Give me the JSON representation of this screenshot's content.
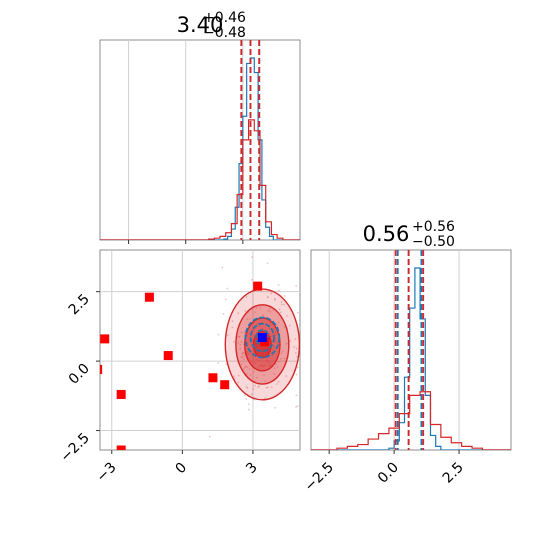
{
  "chart_data": {
    "type": "corner",
    "panels": [
      {
        "id": "hist-x",
        "kind": "histogram",
        "title": {
          "main": "3.40",
          "sup": "+0.46",
          "sub": "−0.48"
        },
        "xlim": [
          -4.5,
          6.0
        ],
        "grid": true,
        "quantile_lines": [
          {
            "series": "blue",
            "style": "dashed",
            "x": [
              2.92,
              3.4,
              3.86
            ]
          },
          {
            "series": "red",
            "style": "dashed",
            "x": [
              2.92,
              3.4,
              3.86
            ]
          }
        ],
        "series": [
          {
            "name": "blue",
            "color": "#1f77b4",
            "edges": [
              2.0,
              2.2,
              2.4,
              2.6,
              2.8,
              3.0,
              3.2,
              3.4,
              3.6,
              3.8,
              4.0,
              4.2,
              4.4,
              4.6
            ],
            "counts": [
              0.005,
              0.02,
              0.06,
              0.18,
              0.42,
              0.68,
              0.97,
              1.0,
              0.92,
              0.55,
              0.22,
              0.07,
              0.02
            ]
          },
          {
            "name": "red",
            "color": "#d62728",
            "edges": [
              1.2,
              1.5,
              1.8,
              2.1,
              2.4,
              2.7,
              3.0,
              3.3,
              3.6,
              3.9,
              4.2,
              4.5,
              4.8,
              5.1
            ],
            "counts": [
              0.005,
              0.01,
              0.02,
              0.04,
              0.09,
              0.25,
              0.55,
              0.66,
              0.6,
              0.3,
              0.1,
              0.03,
              0.01
            ]
          }
        ]
      },
      {
        "id": "hist-y",
        "kind": "histogram",
        "title": {
          "main": "0.56",
          "sup": "+0.56",
          "sub": "−0.50"
        },
        "xlim": [
          -3.2,
          4.5
        ],
        "xticks": [
          -2.5,
          0.0,
          2.5
        ],
        "xtick_labels": [
          "−2.5",
          "0.0",
          "2.5"
        ],
        "grid": true,
        "quantile_lines": [
          {
            "series": "blue",
            "style": "dashed",
            "x": [
              0.14,
              0.56,
              1.05
            ]
          },
          {
            "series": "red",
            "style": "dashed",
            "x": [
              0.06,
              0.56,
              1.12
            ]
          }
        ],
        "series": [
          {
            "name": "blue",
            "color": "#1f77b4",
            "edges": [
              -0.2,
              0.0,
              0.2,
              0.4,
              0.6,
              0.8,
              1.0,
              1.2,
              1.4,
              1.6,
              1.8
            ],
            "counts": [
              0.01,
              0.05,
              0.15,
              0.4,
              0.78,
              1.0,
              0.72,
              0.3,
              0.08,
              0.02
            ]
          },
          {
            "name": "red",
            "color": "#d62728",
            "edges": [
              -2.2,
              -1.8,
              -1.4,
              -1.0,
              -0.6,
              -0.2,
              0.2,
              0.6,
              1.0,
              1.4,
              1.8,
              2.2,
              2.6,
              3.0,
              3.4
            ],
            "counts": [
              0.01,
              0.02,
              0.03,
              0.06,
              0.09,
              0.12,
              0.2,
              0.3,
              0.32,
              0.14,
              0.07,
              0.04,
              0.02,
              0.01
            ]
          }
        ]
      },
      {
        "id": "scatter-xy",
        "kind": "scatter_contour",
        "xlim": [
          -3.5,
          5.0
        ],
        "ylim": [
          -3.2,
          4.0
        ],
        "xticks": [
          -3,
          0,
          3
        ],
        "xtick_labels": [
          "−3",
          "0",
          "3"
        ],
        "yticks": [
          -2.5,
          0.0,
          2.5
        ],
        "ytick_labels": [
          "−2.5",
          "0.0",
          "2.5"
        ],
        "grid": true,
        "points": [
          {
            "x": -3.3,
            "y": 0.8
          },
          {
            "x": -2.6,
            "y": -1.2
          },
          {
            "x": -2.6,
            "y": -3.2
          },
          {
            "x": -1.4,
            "y": 2.3
          },
          {
            "x": -0.6,
            "y": 0.2
          },
          {
            "x": 1.3,
            "y": -0.6
          },
          {
            "x": 1.8,
            "y": -0.85
          },
          {
            "x": 3.2,
            "y": 2.7
          },
          {
            "x": -3.6,
            "y": -0.3
          },
          {
            "x": 3.5,
            "y": 0.7
          }
        ],
        "point_color": "#ff0000",
        "highlight": {
          "x": 3.4,
          "y": 0.85,
          "color": "#0000ff"
        },
        "blue_cloud": {
          "cx": 3.4,
          "cy": 0.85,
          "sx": 0.45,
          "sy": 0.45
        },
        "red_cloud": {
          "cx": 3.4,
          "cy": 0.6,
          "sx": 0.75,
          "sy": 0.95
        }
      }
    ]
  }
}
